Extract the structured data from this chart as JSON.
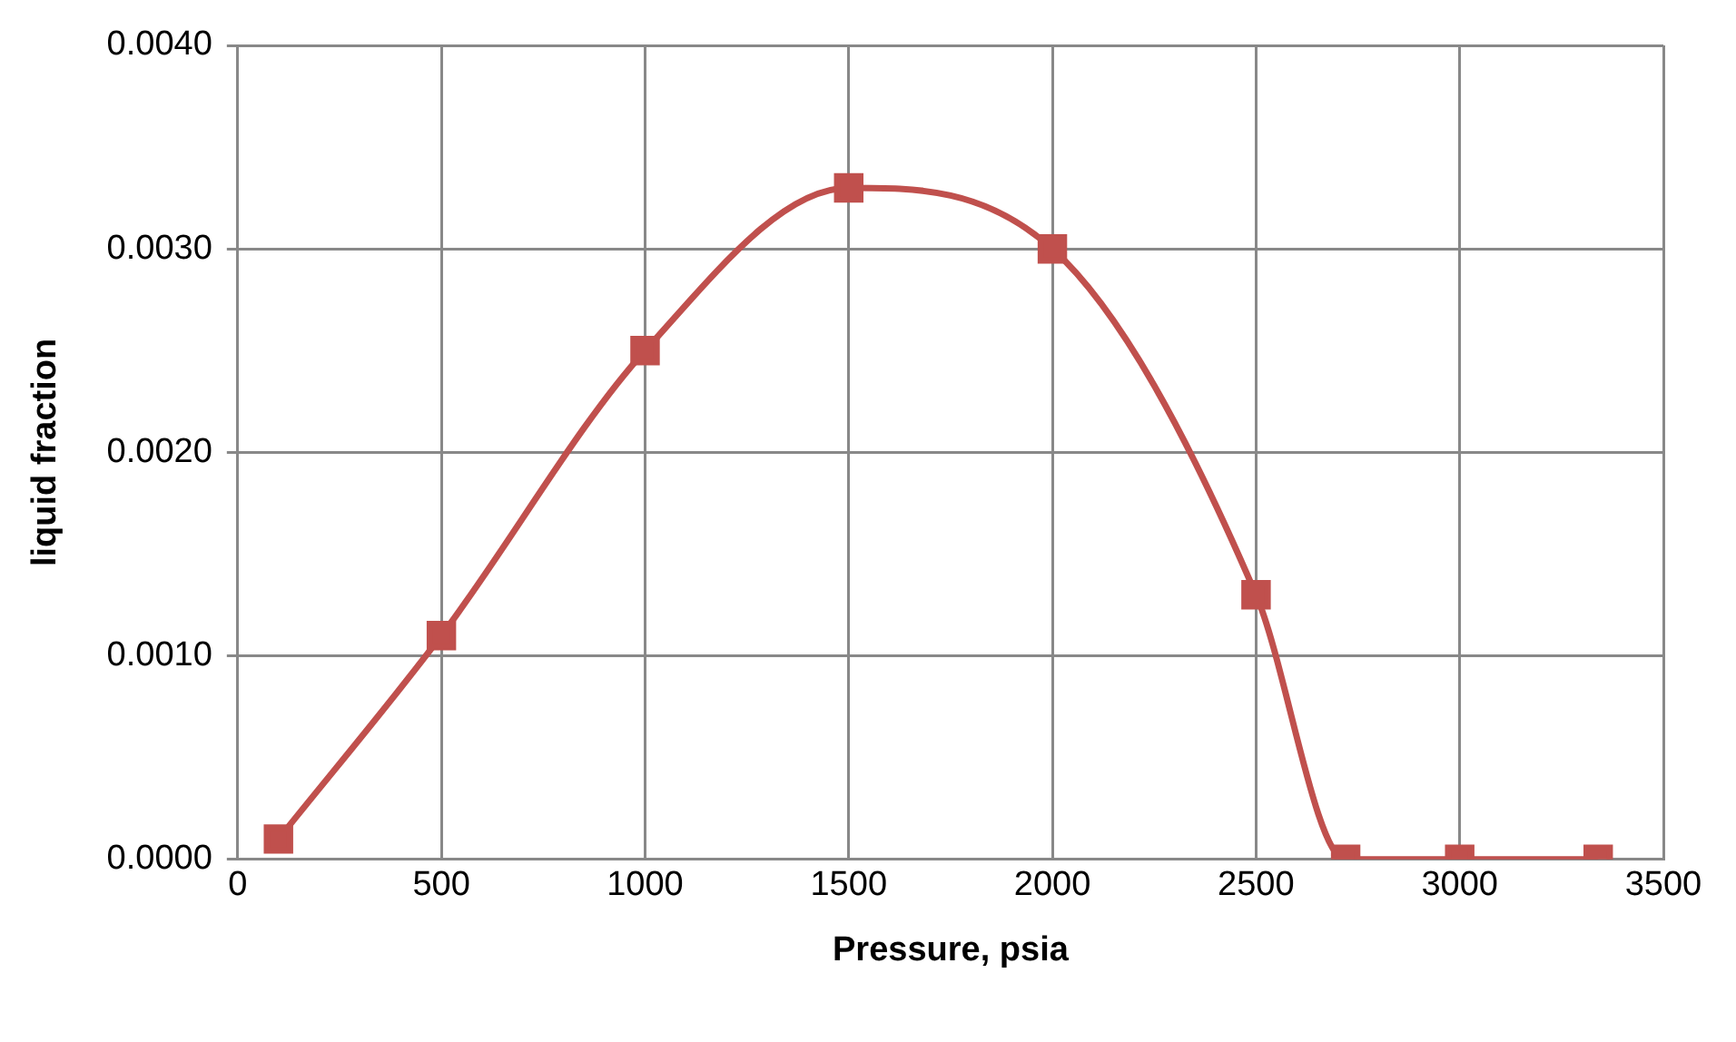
{
  "chart_data": {
    "type": "line",
    "xlabel": "Pressure, psia",
    "ylabel": "liquid fraction",
    "x": [
      100,
      500,
      1000,
      1500,
      2000,
      2500,
      2720,
      3000,
      3340
    ],
    "series": [
      {
        "color": "#c0504d",
        "values": [
          0.0001,
          0.0011,
          0.0025,
          0.0033,
          0.003,
          0.0013,
          0,
          0,
          0
        ]
      }
    ],
    "xlim": [
      0,
      3500
    ],
    "xticks": [
      0,
      500,
      1000,
      1500,
      2000,
      2500,
      3000,
      3500
    ],
    "ylim": [
      0,
      0.004
    ],
    "yticks": [
      {
        "value": 0,
        "label": "0.0000"
      },
      {
        "value": 0.001,
        "label": "0.0010"
      },
      {
        "value": 0.002,
        "label": "0.0020"
      },
      {
        "value": 0.003,
        "label": "0.0030"
      },
      {
        "value": 0.004,
        "label": "0.0040"
      }
    ],
    "grid": true,
    "legend": false,
    "marker": "square",
    "line_style": "solid"
  }
}
